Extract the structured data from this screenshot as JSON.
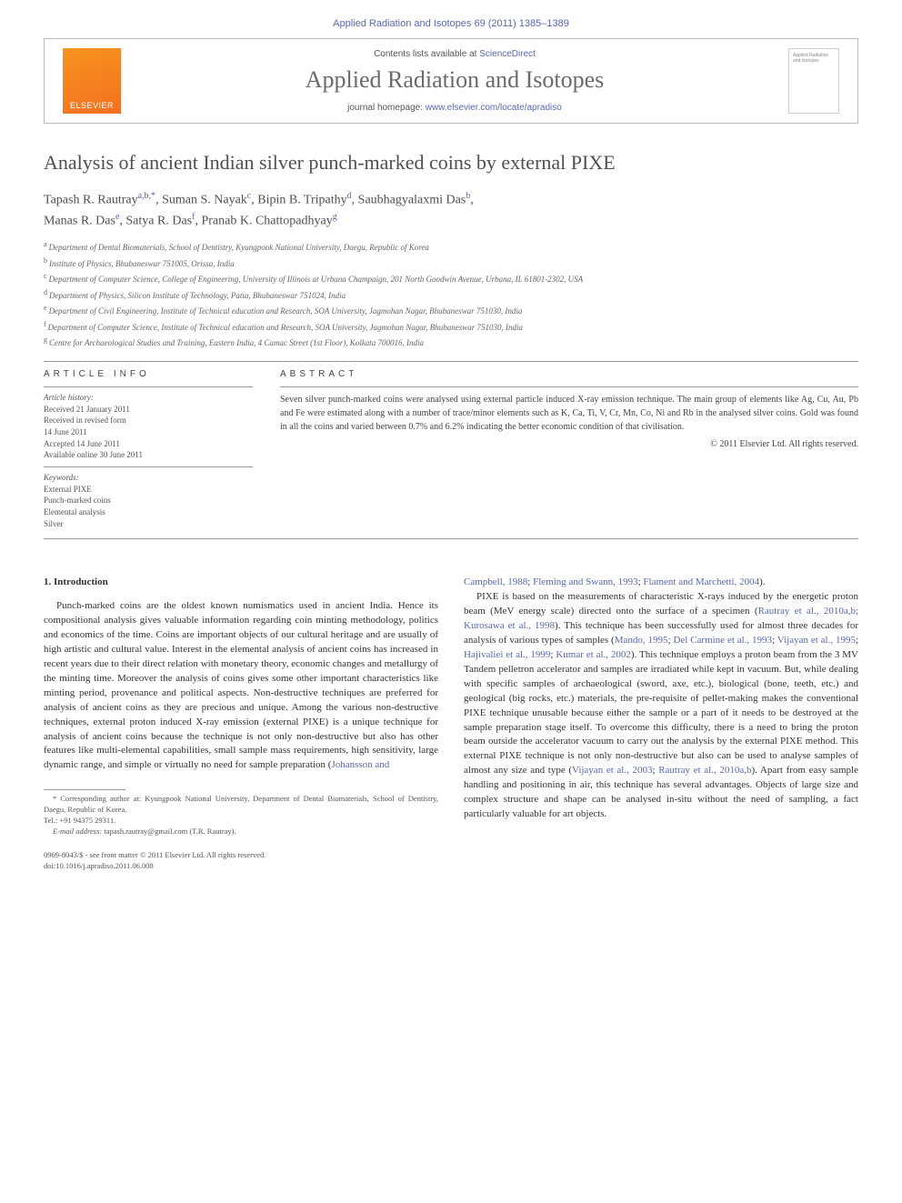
{
  "header": {
    "citation": "Applied Radiation and Isotopes 69 (2011) 1385–1389",
    "contents_prefix": "Contents lists available at ",
    "contents_link": "ScienceDirect",
    "journal_title": "Applied Radiation and Isotopes",
    "homepage_prefix": "journal homepage: ",
    "homepage_url": "www.elsevier.com/locate/apradiso",
    "publisher": "ELSEVIER",
    "cover_text": "Applied Radiation and Isotopes"
  },
  "article": {
    "title": "Analysis of ancient Indian silver punch-marked coins by external PIXE",
    "authors_line1": "Tapash R. Rautray",
    "authors_sup1": "a,b,*",
    "authors_line1b": ", Suman S. Nayak",
    "authors_sup1b": "c",
    "authors_line1c": ", Bipin B. Tripathy",
    "authors_sup1c": "d",
    "authors_line1d": ", Saubhagyalaxmi Das",
    "authors_sup1d": "b",
    "authors_line2": "Manas R. Das",
    "authors_sup2": "e",
    "authors_line2b": ", Satya R. Das",
    "authors_sup2b": "f",
    "authors_line2c": ", Pranab K. Chattopadhyay",
    "authors_sup2c": "g"
  },
  "affiliations": {
    "a": "Department of Dental Biomaterials, School of Dentistry, Kyungpook National University, Daegu, Republic of Korea",
    "b": "Institute of Physics, Bhubaneswar 751005, Orissa, India",
    "c": "Department of Computer Science, College of Engineering, University of Illinois at Urbana Champaign, 201 North Goodwin Avenue, Urbana, IL 61801-2302, USA",
    "d": "Department of Physics, Silicon Institute of Technology, Patia, Bhubaneswar 751024, India",
    "e": "Department of Civil Engineering, Institute of Technical education and Research, SOA University, Jagmohan Nagar, Bhubaneswar 751030, India",
    "f": "Department of Computer Science, Institute of Technical education and Research, SOA University, Jagmohan Nagar, Bhubaneswar 751030, India",
    "g": "Centre for Archaeological Studies and Training, Eastern India, 4 Camac Street (1st Floor), Kolkata 700016, India"
  },
  "info": {
    "heading": "ARTICLE INFO",
    "history_label": "Article history:",
    "received": "Received 21 January 2011",
    "revised": "Received in revised form",
    "revised_date": "14 June 2011",
    "accepted": "Accepted 14 June 2011",
    "online": "Available online 30 June 2011",
    "keywords_label": "Keywords:",
    "kw1": "External PIXE",
    "kw2": "Punch-marked coins",
    "kw3": "Elemental analysis",
    "kw4": "Silver"
  },
  "abstract": {
    "heading": "ABSTRACT",
    "text": "Seven silver punch-marked coins were analysed using external particle induced X-ray emission technique. The main group of elements like Ag, Cu, Au, Pb and Fe were estimated along with a number of trace/minor elements such as K, Ca, Ti, V, Cr, Mn, Co, Ni and Rb in the analysed silver coins. Gold was found in all the coins and varied between 0.7% and 6.2% indicating the better economic condition of that civilisation.",
    "copyright": "© 2011 Elsevier Ltd. All rights reserved."
  },
  "body": {
    "section_heading": "1. Introduction",
    "col1_p1": "Punch-marked coins are the oldest known numismatics used in ancient India. Hence its compositional analysis gives valuable information regarding coin minting methodology, politics and economics of the time. Coins are important objects of our cultural heritage and are usually of high artistic and cultural value. Interest in the elemental analysis of ancient coins has increased in recent years due to their direct relation with monetary theory, economic changes and metallurgy of the minting time. Moreover the analysis of coins gives some other important characteristics like minting period, provenance and political aspects. Non-destructive techniques are preferred for analysis of ancient coins as they are precious and unique. Among the various non-destructive techniques, external proton induced X-ray emission (external PIXE) is a unique technique for analysis of ancient coins because the technique is not only non-destructive but also has other features like multi-elemental capabilities, small sample mass requirements, high sensitivity, large dynamic range, and simple or virtually no need for sample preparation (",
    "col1_ref1": "Johansson and",
    "col2_ref_cont": "Campbell, 1988",
    "col2_ref_sep1": "; ",
    "col2_ref2": "Fleming and Swann, 1993",
    "col2_ref_sep2": "; ",
    "col2_ref3": "Flament and Marchetti, 2004",
    "col2_ref_end": ").",
    "col2_p2": "PIXE is based on the measurements of characteristic X-rays induced by the energetic proton beam (MeV energy scale) directed onto the surface of a specimen (",
    "col2_p2_refs": "Rautray et al., 2010a,b; Kurosawa et al., 1998",
    "col2_p2_cont": "). This technique has been successfully used for almost three decades for analysis of various types of samples (",
    "col2_p2_refs2": "Mando, 1995",
    "col2_p2_sep1": "; ",
    "col2_p2_refs3": "Del Carmine et al., 1993",
    "col2_p2_sep2": "; ",
    "col2_p2_refs4": "Vijayan et al., 1995",
    "col2_p2_sep3": "; ",
    "col2_p2_refs5": "Hajivaliei et al., 1999",
    "col2_p2_sep4": "; ",
    "col2_p2_refs6": "Kumar et al., 2002",
    "col2_p2_cont2": "). This technique employs a proton beam from the 3 MV Tandem pelletron accelerator and samples are irradiated while kept in vacuum. But, while dealing with specific samples of archaeological (sword, axe, etc.), biological (bone, teeth, etc.) and geological (big rocks, etc.) materials, the pre-requisite of pellet-making makes the conventional PIXE technique unusable because either the sample or a part of it needs to be destroyed at the sample preparation stage itself. To overcome this difficulty, there is a need to bring the proton beam outside the accelerator vacuum to carry out the analysis by the external PIXE method. This external PIXE technique is not only non-destructive but also can be used to analyse samples of almost any size and type (",
    "col2_p2_refs7": "Vijayan et al., 2003",
    "col2_p2_sep5": "; ",
    "col2_p2_refs8": "Rautray et al., 2010a,b",
    "col2_p2_cont3": "). Apart from easy sample handling and positioning in air, this technique has several advantages. Objects of large size and complex structure and shape can be analysed in-situ without the need of sampling, a fact particularly valuable for art objects."
  },
  "footnote": {
    "corr": "* Corresponding author at: Kyungpook National University, Department of Dental Biomaterials, School of Dentistry, Daegu, Republic of Korea.",
    "tel": "Tel.: +91 94375 29311.",
    "email_label": "E-mail address: ",
    "email": "tapash.rautray@gmail.com (T.R. Rautray)."
  },
  "footer": {
    "issn": "0969-8043/$ - see front matter © 2011 Elsevier Ltd. All rights reserved.",
    "doi": "doi:10.1016/j.apradiso.2011.06.008"
  },
  "colors": {
    "link": "#5968b0",
    "text": "#333333",
    "muted": "#555555",
    "elsevier_orange": "#f37021",
    "border": "#bbbbbb"
  }
}
